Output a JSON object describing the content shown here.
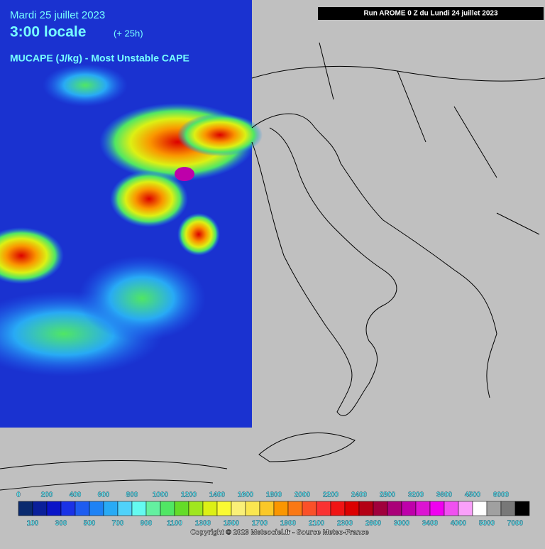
{
  "header": {
    "date": "Mardi 25 juillet 2023",
    "time": "3:00 locale",
    "lead": "(+ 25h)",
    "parameter": "MUCAPE (J/kg) - Most Unstable CAPE",
    "run": "Run AROME 0 Z du Lundi 24 juillet 2023"
  },
  "legend": {
    "upper_labels": [
      0,
      200,
      400,
      600,
      800,
      1000,
      1200,
      1400,
      1600,
      1800,
      2000,
      2200,
      2400,
      2800,
      3200,
      3600,
      4500,
      6000
    ],
    "lower_labels": [
      100,
      300,
      500,
      700,
      900,
      1100,
      1300,
      1500,
      1700,
      1900,
      2100,
      2300,
      2600,
      3000,
      3400,
      4000,
      5000,
      7000
    ],
    "colors": [
      "#0a2a6e",
      "#0a1f9a",
      "#0a14c8",
      "#1a32e6",
      "#1e5cf0",
      "#1e82f5",
      "#28aaf5",
      "#50d2fa",
      "#64faf0",
      "#64f0a0",
      "#50e664",
      "#64dc28",
      "#a0e61e",
      "#dcf014",
      "#fafa32",
      "#faf078",
      "#fae650",
      "#fac828",
      "#fa9600",
      "#fa7814",
      "#fa5028",
      "#fa3232",
      "#f01414",
      "#dc0000",
      "#b40014",
      "#a0003c",
      "#aa0078",
      "#be00aa",
      "#dc14d2",
      "#f000f0",
      "#f050f0",
      "#faa0fa",
      "#ffffff",
      "#a0a0a0",
      "#787878",
      "#000000"
    ]
  },
  "footer": {
    "copyright": "Copyright © 2023 Meteociel.fr - Source Meteo-France"
  }
}
